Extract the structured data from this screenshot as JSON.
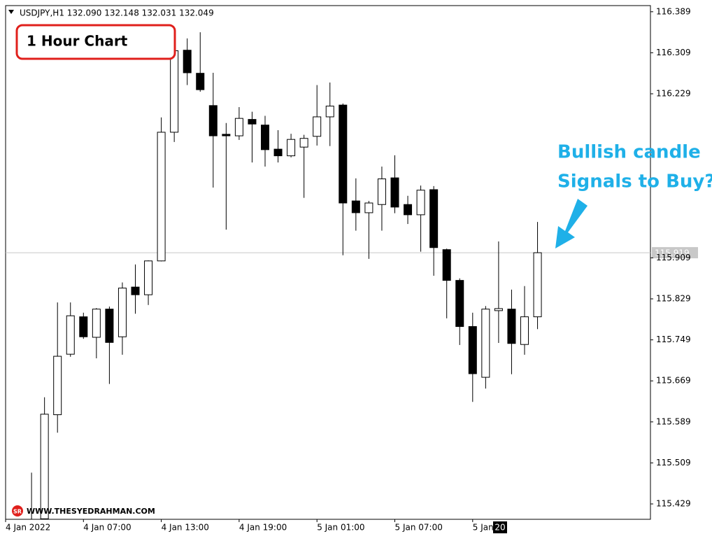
{
  "chart_data": {
    "type": "candlestick",
    "header": "USDJPY,H1  132.090 132.148 132.031 132.049",
    "annotation_box": "1 Hour Chart",
    "annotation_lines": [
      "Bullish candle",
      "Signals to Buy?"
    ],
    "watermark_logo": "SR",
    "watermark": "WWW.THESYEDRAHMAN.COM",
    "cursor_label": "20",
    "up_color": "#ffffff",
    "down_color": "#000000",
    "line_color": "#000000",
    "price_line": 115.919,
    "price_line_color": "#c8c8c8",
    "categories": [
      "4 Jan 2022",
      null,
      null,
      null,
      null,
      null,
      "4 Jan 07:00",
      null,
      null,
      null,
      null,
      null,
      "4 Jan 13:00",
      null,
      null,
      null,
      null,
      null,
      "4 Jan 19:00",
      null,
      null,
      null,
      null,
      null,
      "5 Jan 01:00",
      null,
      null,
      null,
      null,
      null,
      "5 Jan 07:00",
      null,
      null,
      null,
      null,
      null,
      "5 Jan",
      null,
      null,
      null,
      null,
      null
    ],
    "open": [
      null,
      null,
      115.36,
      115.4,
      115.603,
      115.721,
      115.794,
      115.754,
      115.809,
      115.755,
      115.852,
      115.837,
      115.903,
      116.154,
      116.314,
      116.269,
      116.206,
      116.15,
      116.147,
      116.179,
      116.168,
      116.121,
      116.108,
      116.125,
      116.146,
      116.184,
      116.207,
      116.02,
      115.997,
      116.013,
      116.065,
      116.013,
      115.993,
      116.042,
      115.925,
      115.865,
      115.775,
      115.676,
      115.806,
      115.809,
      115.74,
      115.794
    ],
    "high": [
      null,
      null,
      115.49,
      115.637,
      115.822,
      115.822,
      115.802,
      115.811,
      115.814,
      115.861,
      115.896,
      115.904,
      116.183,
      116.348,
      116.337,
      116.349,
      116.27,
      116.172,
      116.203,
      116.194,
      116.186,
      116.158,
      116.151,
      116.149,
      116.246,
      116.251,
      116.21,
      116.064,
      116.02,
      116.087,
      116.109,
      116.03,
      116.05,
      116.049,
      115.927,
      115.869,
      115.802,
      115.815,
      115.941,
      115.847,
      115.854,
      115.979
    ],
    "low": [
      null,
      null,
      115.33,
      115.38,
      115.568,
      115.716,
      115.751,
      115.713,
      115.663,
      115.72,
      115.8,
      115.817,
      115.902,
      116.135,
      116.246,
      116.233,
      116.046,
      115.964,
      116.139,
      116.095,
      116.087,
      116.095,
      116.105,
      116.026,
      116.128,
      116.127,
      115.914,
      115.962,
      115.907,
      115.962,
      115.996,
      115.975,
      115.921,
      115.874,
      115.791,
      115.739,
      115.628,
      115.654,
      115.743,
      115.682,
      115.72,
      115.77
    ],
    "close": [
      null,
      null,
      115.39,
      115.604,
      115.717,
      115.796,
      115.755,
      115.809,
      115.744,
      115.85,
      115.837,
      115.903,
      116.154,
      116.313,
      116.27,
      116.237,
      116.147,
      116.147,
      116.181,
      116.17,
      116.12,
      116.108,
      116.14,
      116.142,
      116.184,
      116.205,
      116.016,
      115.997,
      116.016,
      116.063,
      116.008,
      115.993,
      116.041,
      115.929,
      115.865,
      115.775,
      115.683,
      115.809,
      115.81,
      115.742,
      115.794,
      115.919
    ],
    "ylim": [
      115.399,
      116.401
    ],
    "yticks": [
      116.389,
      116.309,
      116.229,
      115.909,
      115.829,
      115.749,
      115.669,
      115.589,
      115.509,
      115.429
    ],
    "grid": false
  }
}
